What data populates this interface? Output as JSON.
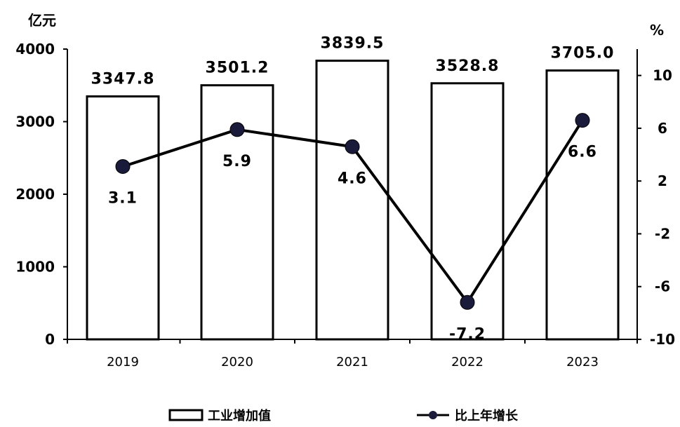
{
  "chart_data": {
    "type": "bar",
    "categories": [
      "2019",
      "2020",
      "2021",
      "2022",
      "2023"
    ],
    "series": [
      {
        "name": "工业增加值",
        "type": "bar",
        "axis": "left",
        "values": [
          3347.8,
          3501.2,
          3839.5,
          3528.8,
          3705.0
        ],
        "value_labels": [
          "3347.8",
          "3501.2",
          "3839.5",
          "3528.8",
          "3705.0"
        ]
      },
      {
        "name": "比上年增长",
        "type": "line",
        "axis": "right",
        "values": [
          3.1,
          5.9,
          4.6,
          -7.2,
          6.6
        ],
        "value_labels": [
          "3.1",
          "5.9",
          "4.6",
          "-7.2",
          "6.6"
        ]
      }
    ],
    "y_left": {
      "unit": "亿元",
      "range": [
        0,
        4000
      ],
      "ticks": [
        0,
        1000,
        2000,
        3000,
        4000
      ],
      "tick_labels": [
        "0",
        "1000",
        "2000",
        "3000",
        "4000"
      ]
    },
    "y_right": {
      "unit": "%",
      "range": [
        -10,
        12
      ],
      "ticks": [
        -10,
        -6,
        -2,
        2,
        6,
        10
      ],
      "tick_labels": [
        "-10",
        "-6",
        "-2",
        "2",
        "6",
        "10"
      ]
    },
    "grid": false,
    "legend": "bottom",
    "colors": {
      "bar_fill": "#ffffff",
      "bar_stroke": "#000000",
      "line": "#000000",
      "marker": "#1a1a3a"
    }
  }
}
